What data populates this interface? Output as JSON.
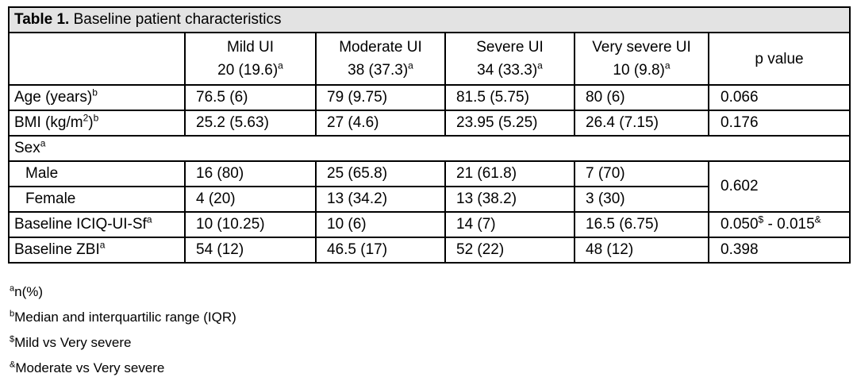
{
  "caption": {
    "label": "Table 1.",
    "text": " Baseline patient characteristics"
  },
  "headers": [
    {
      "line1": "Mild UI",
      "line2": "20 (19.6)",
      "sup": "a"
    },
    {
      "line1": "Moderate UI",
      "line2": "38 (37.3)",
      "sup": "a"
    },
    {
      "line1": "Severe UI",
      "line2": "34 (33.3)",
      "sup": "a"
    },
    {
      "line1": "Very severe UI",
      "line2": "10 (9.8)",
      "sup": "a"
    }
  ],
  "pvalue_header": "p value",
  "rows": {
    "age": {
      "label": "Age (years)",
      "sup": "b",
      "values": [
        "76.5 (6)",
        "79 (9.75)",
        "81.5 (5.75)",
        "80 (6)"
      ],
      "p": "0.066"
    },
    "bmi": {
      "label": "BMI (kg/m",
      "sup_unit": "2",
      "label_close": ")",
      "sup": "b",
      "values": [
        "25.2 (5.63)",
        "27 (4.6)",
        "23.95 (5.25)",
        "26.4 (7.15)"
      ],
      "p": "0.176"
    },
    "sex": {
      "label": "Sex",
      "sup": "a"
    },
    "male": {
      "label": "Male",
      "values": [
        "16 (80)",
        "25 (65.8)",
        "21 (61.8)",
        "7 (70)"
      ]
    },
    "female": {
      "label": "Female",
      "values": [
        "4 (20)",
        "13 (34.2)",
        "13 (38.2)",
        "3 (30)"
      ]
    },
    "sex_p": "0.602",
    "iciq": {
      "label": "Baseline ICIQ-UI-Sf",
      "sup": "a",
      "values": [
        "10 (10.25)",
        "10 (6)",
        "14 (7)",
        "16.5 (6.75)"
      ],
      "p1": "0.050",
      "p1_sup": "$",
      "p_sep": " - ",
      "p2": "0.015",
      "p2_sup": "&"
    },
    "zbi": {
      "label": "Baseline ZBI",
      "sup": "a",
      "values": [
        "54 (12)",
        "46.5 (17)",
        "52 (22)",
        "48 (12)"
      ],
      "p": "0.398"
    }
  },
  "footnotes": [
    {
      "mark": "a",
      "text": "n(%)"
    },
    {
      "mark": "b",
      "text": "Median and interquartilic range (IQR)"
    },
    {
      "mark": "$",
      "text": "Mild vs Very severe"
    },
    {
      "mark": "&",
      "text": "Moderate vs Very severe"
    }
  ]
}
